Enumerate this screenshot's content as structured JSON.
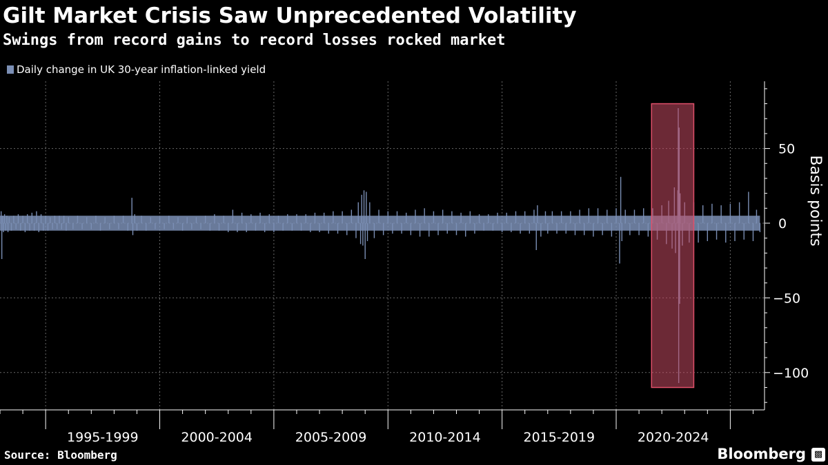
{
  "header": {
    "title": "Gilt Market Crisis Saw Unprecedented Volatility",
    "subtitle": "Swings from record gains to record losses rocked market"
  },
  "footer": {
    "source": "Source: Bloomberg",
    "brand": "Bloomberg",
    "brand_icon": "bar-chart-icon"
  },
  "colors": {
    "background": "#000000",
    "series": "#7b8fb5",
    "highlight_fill": "#c44a63",
    "highlight_stroke": "#e0506a",
    "grid": "#6a6a6a",
    "text": "#ffffff"
  },
  "chart_data": {
    "type": "bar",
    "title": "Gilt Market Crisis Saw Unprecedented Volatility",
    "subtitle": "Swings from record gains to record losses rocked market",
    "ylabel": "Basis points",
    "xlabel": "",
    "ylim": [
      -125,
      95
    ],
    "y_ticks": [
      50,
      0,
      -50,
      -100
    ],
    "y_tick_labels": [
      "50",
      "0",
      "-50",
      "-100"
    ],
    "x_range": [
      1993.0,
      2026.5
    ],
    "x_category_labels": [
      "1995-1999",
      "2000-2004",
      "2005-2009",
      "2010-2014",
      "2015-2019",
      "2020-2024"
    ],
    "x_category_spans": [
      [
        1995,
        2000
      ],
      [
        2000,
        2005
      ],
      [
        2005,
        2010
      ],
      [
        2010,
        2015
      ],
      [
        2015,
        2020
      ],
      [
        2020,
        2025
      ]
    ],
    "grid": true,
    "legend_position": "top-left",
    "series": [
      {
        "name": "Daily change in UK 30-year inflation-linked yield",
        "approximate": true,
        "points": [
          [
            1993.05,
            8
          ],
          [
            1993.08,
            -24
          ],
          [
            1993.12,
            5
          ],
          [
            1993.15,
            -6
          ],
          [
            1993.2,
            6
          ],
          [
            1993.25,
            -5
          ],
          [
            1993.3,
            5
          ],
          [
            1993.35,
            -6
          ],
          [
            1993.4,
            4
          ],
          [
            1993.5,
            -5
          ],
          [
            1993.6,
            5
          ],
          [
            1993.7,
            -4
          ],
          [
            1993.8,
            6
          ],
          [
            1993.9,
            -5
          ],
          [
            1994.0,
            5
          ],
          [
            1994.1,
            -6
          ],
          [
            1994.2,
            6
          ],
          [
            1994.3,
            -5
          ],
          [
            1994.4,
            7
          ],
          [
            1994.5,
            -5
          ],
          [
            1994.6,
            8
          ],
          [
            1994.7,
            -6
          ],
          [
            1994.8,
            6
          ],
          [
            1994.9,
            -5
          ],
          [
            1995.0,
            5
          ],
          [
            1995.1,
            -5
          ],
          [
            1995.2,
            4
          ],
          [
            1995.3,
            -4
          ],
          [
            1995.4,
            5
          ],
          [
            1995.5,
            -4
          ],
          [
            1995.6,
            5
          ],
          [
            1995.7,
            -4
          ],
          [
            1995.8,
            5
          ],
          [
            1995.9,
            -5
          ],
          [
            1996.0,
            4
          ],
          [
            1996.2,
            -4
          ],
          [
            1996.4,
            5
          ],
          [
            1996.6,
            -4
          ],
          [
            1996.8,
            4
          ],
          [
            1997.0,
            -4
          ],
          [
            1997.2,
            5
          ],
          [
            1997.4,
            -5
          ],
          [
            1997.6,
            4
          ],
          [
            1997.8,
            -4
          ],
          [
            1998.0,
            5
          ],
          [
            1998.2,
            -4
          ],
          [
            1998.4,
            5
          ],
          [
            1998.6,
            -5
          ],
          [
            1998.78,
            17
          ],
          [
            1998.82,
            -8
          ],
          [
            1998.9,
            6
          ],
          [
            1999.0,
            -5
          ],
          [
            1999.2,
            5
          ],
          [
            1999.4,
            -5
          ],
          [
            1999.6,
            4
          ],
          [
            1999.8,
            -4
          ],
          [
            2000.0,
            4
          ],
          [
            2000.2,
            -4
          ],
          [
            2000.4,
            5
          ],
          [
            2000.6,
            -4
          ],
          [
            2000.8,
            4
          ],
          [
            2001.0,
            -5
          ],
          [
            2001.2,
            4
          ],
          [
            2001.4,
            -4
          ],
          [
            2001.6,
            4
          ],
          [
            2001.8,
            -4
          ],
          [
            2002.0,
            5
          ],
          [
            2002.2,
            -5
          ],
          [
            2002.4,
            6
          ],
          [
            2002.6,
            -5
          ],
          [
            2002.8,
            5
          ],
          [
            2003.0,
            -6
          ],
          [
            2003.2,
            9
          ],
          [
            2003.4,
            -6
          ],
          [
            2003.6,
            7
          ],
          [
            2003.8,
            -6
          ],
          [
            2004.0,
            6
          ],
          [
            2004.2,
            -5
          ],
          [
            2004.4,
            7
          ],
          [
            2004.6,
            -6
          ],
          [
            2004.8,
            6
          ],
          [
            2005.0,
            -6
          ],
          [
            2005.2,
            5
          ],
          [
            2005.4,
            -5
          ],
          [
            2005.6,
            6
          ],
          [
            2005.8,
            -5
          ],
          [
            2006.0,
            6
          ],
          [
            2006.2,
            -5
          ],
          [
            2006.4,
            6
          ],
          [
            2006.6,
            -6
          ],
          [
            2006.8,
            7
          ],
          [
            2007.0,
            -6
          ],
          [
            2007.2,
            7
          ],
          [
            2007.4,
            -7
          ],
          [
            2007.6,
            8
          ],
          [
            2007.8,
            -7
          ],
          [
            2008.0,
            8
          ],
          [
            2008.2,
            -8
          ],
          [
            2008.4,
            9
          ],
          [
            2008.6,
            -10
          ],
          [
            2008.7,
            14
          ],
          [
            2008.8,
            -14
          ],
          [
            2008.85,
            19
          ],
          [
            2008.9,
            -15
          ],
          [
            2008.95,
            22
          ],
          [
            2009.0,
            -24
          ],
          [
            2009.05,
            21
          ],
          [
            2009.1,
            -12
          ],
          [
            2009.2,
            14
          ],
          [
            2009.4,
            -10
          ],
          [
            2009.6,
            9
          ],
          [
            2009.8,
            -8
          ],
          [
            2010.0,
            8
          ],
          [
            2010.2,
            -7
          ],
          [
            2010.4,
            8
          ],
          [
            2010.6,
            -7
          ],
          [
            2010.8,
            7
          ],
          [
            2011.0,
            -8
          ],
          [
            2011.2,
            9
          ],
          [
            2011.4,
            -9
          ],
          [
            2011.6,
            10
          ],
          [
            2011.8,
            -9
          ],
          [
            2012.0,
            8
          ],
          [
            2012.2,
            -8
          ],
          [
            2012.4,
            9
          ],
          [
            2012.6,
            -7
          ],
          [
            2012.8,
            8
          ],
          [
            2013.0,
            -8
          ],
          [
            2013.2,
            7
          ],
          [
            2013.4,
            -9
          ],
          [
            2013.6,
            8
          ],
          [
            2013.8,
            -7
          ],
          [
            2014.0,
            6
          ],
          [
            2014.2,
            -5
          ],
          [
            2014.4,
            6
          ],
          [
            2014.6,
            -5
          ],
          [
            2014.8,
            7
          ],
          [
            2015.0,
            -6
          ],
          [
            2015.2,
            7
          ],
          [
            2015.4,
            -6
          ],
          [
            2015.6,
            8
          ],
          [
            2015.8,
            -7
          ],
          [
            2016.0,
            8
          ],
          [
            2016.2,
            -7
          ],
          [
            2016.4,
            9
          ],
          [
            2016.5,
            -18
          ],
          [
            2016.55,
            12
          ],
          [
            2016.7,
            -9
          ],
          [
            2016.9,
            8
          ],
          [
            2017.0,
            -7
          ],
          [
            2017.2,
            8
          ],
          [
            2017.4,
            -7
          ],
          [
            2017.6,
            8
          ],
          [
            2017.8,
            -7
          ],
          [
            2018.0,
            8
          ],
          [
            2018.2,
            -8
          ],
          [
            2018.4,
            9
          ],
          [
            2018.6,
            -8
          ],
          [
            2018.8,
            10
          ],
          [
            2019.0,
            -9
          ],
          [
            2019.2,
            10
          ],
          [
            2019.4,
            -8
          ],
          [
            2019.6,
            9
          ],
          [
            2019.8,
            -9
          ],
          [
            2020.0,
            10
          ],
          [
            2020.15,
            -27
          ],
          [
            2020.2,
            31
          ],
          [
            2020.25,
            -12
          ],
          [
            2020.4,
            9
          ],
          [
            2020.6,
            -8
          ],
          [
            2020.8,
            9
          ],
          [
            2021.0,
            -8
          ],
          [
            2021.2,
            10
          ],
          [
            2021.4,
            -9
          ],
          [
            2021.6,
            10
          ],
          [
            2021.8,
            -11
          ],
          [
            2022.0,
            12
          ],
          [
            2022.2,
            -14
          ],
          [
            2022.3,
            15
          ],
          [
            2022.45,
            -17
          ],
          [
            2022.55,
            24
          ],
          [
            2022.6,
            -20
          ],
          [
            2022.7,
            22
          ],
          [
            2022.72,
            77
          ],
          [
            2022.74,
            -107
          ],
          [
            2022.76,
            64
          ],
          [
            2022.78,
            -54
          ],
          [
            2022.8,
            20
          ],
          [
            2022.9,
            -15
          ],
          [
            2023.0,
            14
          ],
          [
            2023.2,
            -13
          ],
          [
            2023.4,
            14
          ],
          [
            2023.6,
            -13
          ],
          [
            2023.8,
            12
          ],
          [
            2024.0,
            -12
          ],
          [
            2024.2,
            13
          ],
          [
            2024.4,
            -11
          ],
          [
            2024.6,
            12
          ],
          [
            2024.8,
            -13
          ],
          [
            2025.0,
            13
          ],
          [
            2025.2,
            -12
          ],
          [
            2025.4,
            14
          ],
          [
            2025.6,
            -11
          ],
          [
            2025.8,
            21
          ],
          [
            2026.0,
            -12
          ],
          [
            2026.15,
            9
          ],
          [
            2026.3,
            -6
          ]
        ]
      }
    ],
    "highlight": {
      "x_range": [
        2021.55,
        2023.4
      ],
      "y_range": [
        -110,
        80
      ]
    }
  }
}
